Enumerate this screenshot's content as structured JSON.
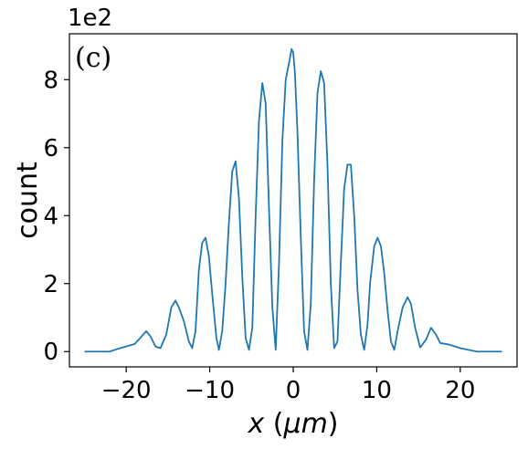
{
  "chart_data": {
    "type": "line",
    "panel_label": "(c)",
    "offset_text": "1e2",
    "xlabel": "x (μm)",
    "ylabel": "count",
    "xlim": [
      -26.8,
      26.8
    ],
    "ylim": [
      -0.45,
      9.35
    ],
    "xticks": [
      -20,
      -10,
      0,
      10,
      20
    ],
    "xtick_labels": [
      "−20",
      "−10",
      "0",
      "10",
      "20"
    ],
    "yticks": [
      0,
      2,
      4,
      6,
      8
    ],
    "ytick_labels": [
      "0",
      "2",
      "4",
      "6",
      "8"
    ],
    "grid": false,
    "series": [
      {
        "color": "#1f77b4",
        "x": [
          -25,
          -22,
          -21,
          -20,
          -19,
          -18.4,
          -17.6,
          -17.1,
          -16.5,
          -15.9,
          -15.2,
          -14.6,
          -14.1,
          -13.7,
          -13.1,
          -12.5,
          -12.1,
          -11.7,
          -11.3,
          -10.9,
          -10.5,
          -10.1,
          -9.7,
          -9.2,
          -8.9,
          -8.5,
          -8.1,
          -7.7,
          -7.3,
          -6.9,
          -6.5,
          -6.1,
          -5.7,
          -5.3,
          -4.9,
          -4.5,
          -4.1,
          -3.7,
          -3.3,
          -2.9,
          -2.5,
          -2.1,
          -1.7,
          -1.3,
          -0.9,
          -0.5,
          -0.2,
          0,
          0.2,
          0.5,
          0.9,
          1.3,
          1.7,
          2.1,
          2.5,
          2.9,
          3.3,
          3.7,
          4.1,
          4.5,
          4.9,
          5.3,
          5.7,
          6.1,
          6.5,
          6.9,
          7.3,
          7.7,
          8.1,
          8.5,
          8.9,
          9.2,
          9.7,
          10.1,
          10.5,
          10.9,
          11.3,
          11.7,
          12.1,
          12.5,
          13.1,
          13.7,
          14.1,
          14.6,
          15.2,
          15.9,
          16.5,
          17.1,
          17.6,
          18.4,
          19,
          20,
          21,
          22,
          25
        ],
        "y": [
          0.0,
          0.0,
          0.08,
          0.15,
          0.22,
          0.38,
          0.6,
          0.45,
          0.15,
          0.1,
          0.5,
          1.3,
          1.5,
          1.3,
          0.9,
          0.3,
          0.1,
          0.6,
          2.4,
          3.2,
          3.35,
          2.8,
          1.7,
          0.4,
          0.05,
          0.6,
          2.0,
          3.8,
          5.3,
          5.6,
          4.5,
          2.2,
          0.4,
          0.05,
          0.7,
          4.0,
          6.8,
          7.9,
          7.3,
          4.2,
          1.3,
          0.05,
          2.6,
          6.2,
          8.0,
          8.5,
          8.9,
          8.8,
          8.2,
          6.5,
          3.4,
          0.6,
          0.05,
          1.4,
          5.0,
          7.6,
          8.25,
          7.9,
          5.5,
          2.0,
          0.1,
          0.3,
          2.6,
          4.8,
          5.5,
          5.5,
          4.0,
          1.8,
          0.5,
          0.05,
          0.8,
          2.0,
          3.1,
          3.35,
          3.1,
          2.3,
          1.2,
          0.3,
          0.05,
          0.6,
          1.3,
          1.6,
          1.4,
          0.7,
          0.12,
          0.35,
          0.7,
          0.5,
          0.25,
          0.22,
          0.18,
          0.1,
          0.05,
          0.0,
          0.0
        ]
      }
    ]
  }
}
